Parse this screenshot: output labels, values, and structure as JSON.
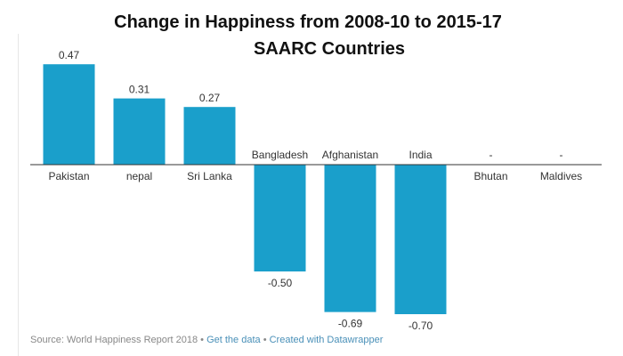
{
  "chart_data": {
    "type": "bar",
    "title": "Change in Happiness from 2008-10 to 2015-17",
    "subtitle": "SAARC Countries",
    "categories": [
      "Pakistan",
      "nepal",
      "Sri Lanka",
      "Bangladesh",
      "Afghanistan",
      "India",
      "Bhutan",
      "Maldives"
    ],
    "values": [
      0.47,
      0.31,
      0.27,
      -0.5,
      -0.69,
      -0.7,
      null,
      null
    ],
    "value_labels": [
      "0.47",
      "0.31",
      "0.27",
      "-0.50",
      "-0.69",
      "-0.70",
      "-",
      "-"
    ],
    "xlabel": "",
    "ylabel": "",
    "ylim": [
      -0.75,
      0.5
    ],
    "grid": false,
    "bar_color": "#1a9fcb"
  },
  "footer": {
    "source": "Source: World Happiness Report 2018",
    "sep": " • ",
    "get_data": "Get the data",
    "created": "Created with Datawrapper"
  }
}
